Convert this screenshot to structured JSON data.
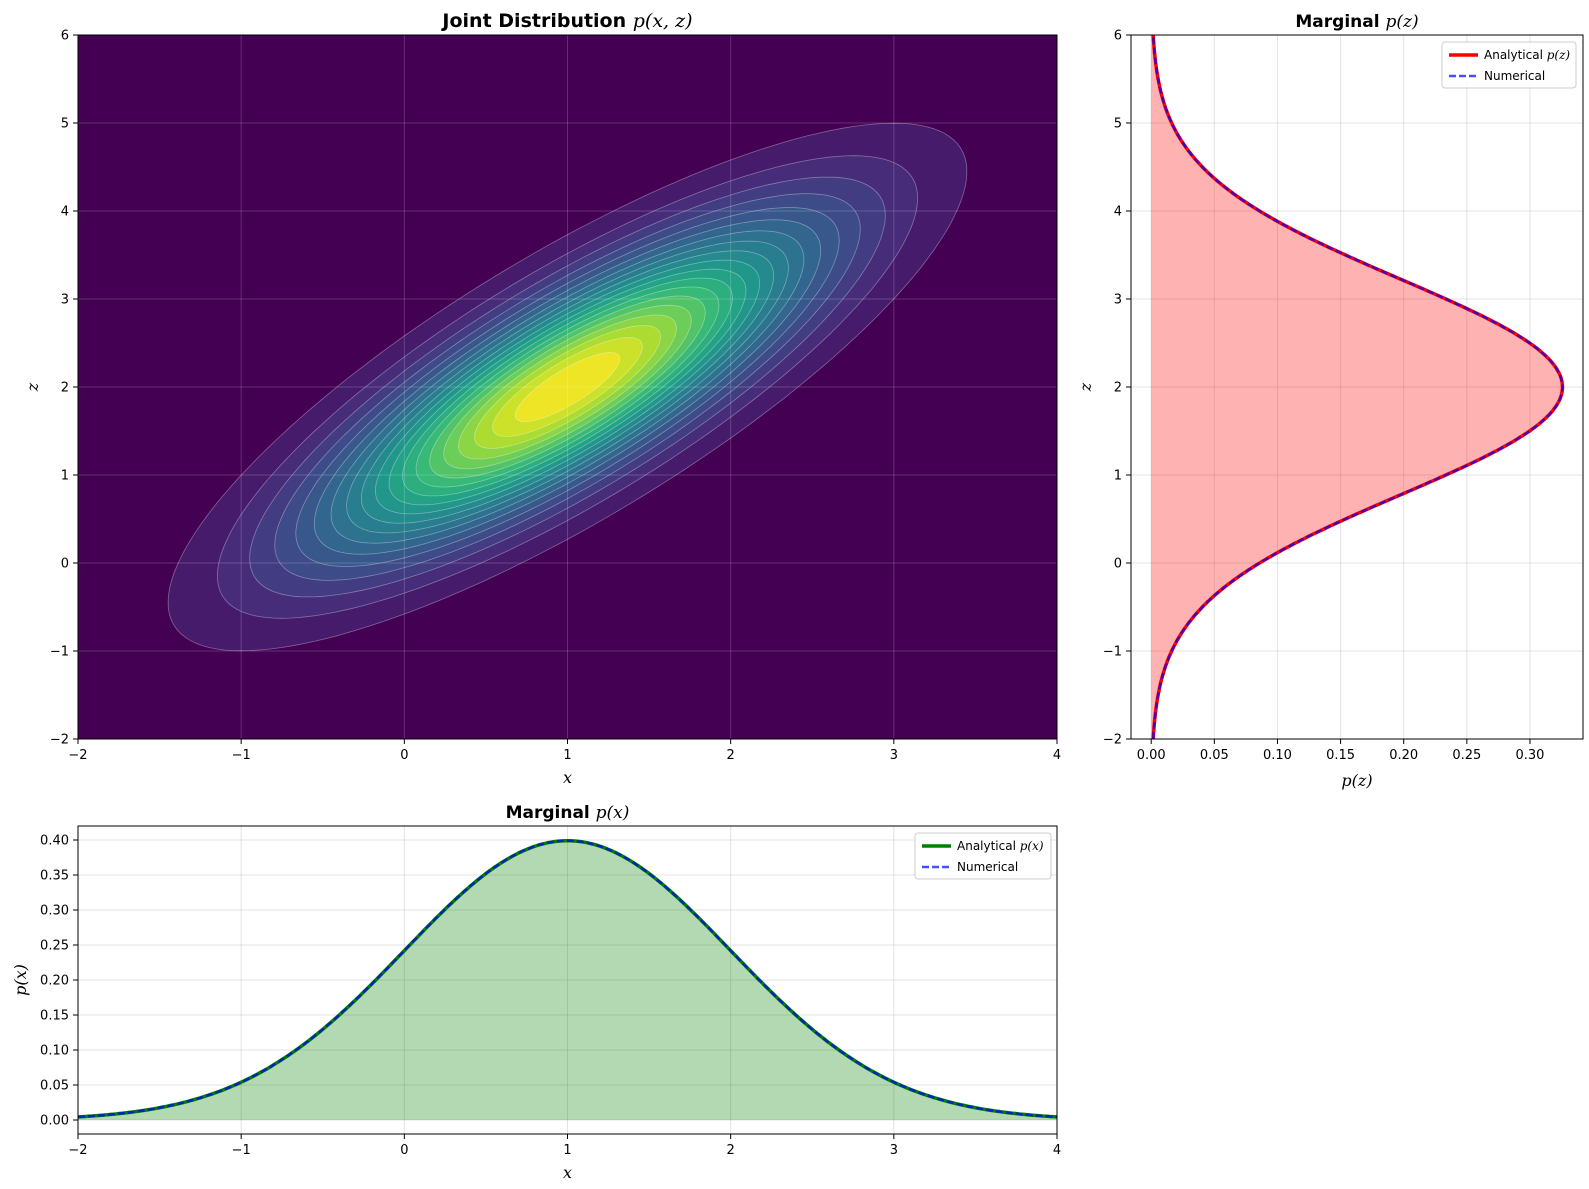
{
  "chart_data": [
    {
      "id": "joint",
      "type": "heatmap",
      "title_prefix": "Joint Distribution ",
      "title_math": "p(x, z)",
      "xlabel": "x",
      "ylabel": "z",
      "xlim": [
        -2,
        4
      ],
      "ylim": [
        -2,
        6
      ],
      "xticks": [
        -2,
        -1,
        0,
        1,
        2,
        3,
        4
      ],
      "yticks": [
        -2,
        -1,
        0,
        1,
        2,
        3,
        4,
        5,
        6
      ],
      "xtick_labels": [
        "−2",
        "−1",
        "0",
        "1",
        "2",
        "3",
        "4"
      ],
      "ytick_labels": [
        "−2",
        "−1",
        "0",
        "1",
        "2",
        "3",
        "4",
        "5",
        "6"
      ],
      "distribution": {
        "mean": [
          1,
          2
        ],
        "cov": [
          [
            1.0,
            1.0
          ],
          [
            1.0,
            1.5
          ]
        ]
      },
      "colormap": "viridis",
      "levels": 20,
      "grid": true
    },
    {
      "id": "marginal_z",
      "type": "line",
      "orientation": "vertical",
      "title_prefix": "Marginal ",
      "title_math": "p(z)",
      "xlabel": "p(z)",
      "ylabel": "z",
      "xlim": [
        -0.016,
        0.342
      ],
      "ylim": [
        -2,
        6
      ],
      "xticks": [
        0,
        0.05,
        0.1,
        0.15,
        0.2,
        0.25,
        0.3
      ],
      "xtick_labels": [
        "0.00",
        "0.05",
        "0.10",
        "0.15",
        "0.20",
        "0.25",
        "0.30"
      ],
      "yticks": [
        -2,
        -1,
        0,
        1,
        2,
        3,
        4,
        5,
        6
      ],
      "ytick_labels": [
        "−2",
        "−1",
        "0",
        "1",
        "2",
        "3",
        "4",
        "5",
        "6"
      ],
      "distribution": {
        "mean": 2,
        "variance": 1.5
      },
      "series": [
        {
          "name_prefix": "Analytical ",
          "name_math": "p(z)",
          "color": "#ff0000",
          "style": "solid"
        },
        {
          "name": "Numerical",
          "color": "#0000ff",
          "style": "dashed"
        }
      ],
      "fill_color": "#ff0000",
      "legend": "top-right",
      "grid": true
    },
    {
      "id": "marginal_x",
      "type": "line",
      "title_prefix": "Marginal ",
      "title_math": "p(x)",
      "xlabel": "x",
      "ylabel": "p(x)",
      "xlim": [
        -2,
        4
      ],
      "ylim": [
        -0.02,
        0.42
      ],
      "xticks": [
        -2,
        -1,
        0,
        1,
        2,
        3,
        4
      ],
      "xtick_labels": [
        "−2",
        "−1",
        "0",
        "1",
        "2",
        "3",
        "4"
      ],
      "yticks": [
        0,
        0.05,
        0.1,
        0.15,
        0.2,
        0.25,
        0.3,
        0.35,
        0.4
      ],
      "ytick_labels": [
        "0.00",
        "0.05",
        "0.10",
        "0.15",
        "0.20",
        "0.25",
        "0.30",
        "0.35",
        "0.40"
      ],
      "distribution": {
        "mean": 1,
        "variance": 1.0
      },
      "series": [
        {
          "name_prefix": "Analytical ",
          "name_math": "p(x)",
          "color": "#008000",
          "style": "solid"
        },
        {
          "name": "Numerical",
          "color": "#0000ff",
          "style": "dashed"
        }
      ],
      "fill_color": "#008000",
      "legend": "top-right",
      "grid": true
    }
  ]
}
